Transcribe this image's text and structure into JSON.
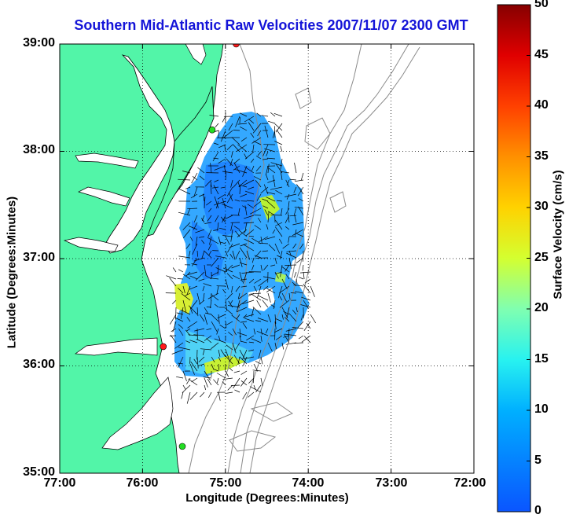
{
  "title": "Southern Mid-Atlantic Raw Velocities 2007/11/07 2300 GMT",
  "x_axis": {
    "label": "Longitude (Degrees:Minutes)",
    "ticks": [
      "77:00",
      "76:00",
      "75:00",
      "74:00",
      "73:00",
      "72:00"
    ]
  },
  "y_axis": {
    "label": "Latitude (Degrees:Minutes)",
    "ticks": [
      "39:00",
      "38:00",
      "37:00",
      "36:00",
      "35:00"
    ]
  },
  "colorbar": {
    "label": "Surface Velocity (cm/s)",
    "ticks": [
      "50",
      "45",
      "40",
      "35",
      "30",
      "25",
      "20",
      "15",
      "10",
      "5",
      "0"
    ],
    "range": [
      0,
      50
    ],
    "colormap": "jet"
  },
  "colors": {
    "title": "#1414d8",
    "land": "#52f5a8",
    "water_background": "#ffffff",
    "bathymetry": "#8a8a8a",
    "station_red": "#ff1a1a",
    "station_green": "#22dd22"
  },
  "map": {
    "extent": {
      "lon": [
        -77,
        -72
      ],
      "lat": [
        35,
        39
      ]
    },
    "grid": true,
    "stations": [
      {
        "lon": -74.87,
        "lat": 39.0,
        "color": "red"
      },
      {
        "lon": -75.16,
        "lat": 38.2,
        "color": "green"
      },
      {
        "lon": -75.75,
        "lat": 36.18,
        "color": "red"
      },
      {
        "lon": -75.52,
        "lat": 35.25,
        "color": "green"
      }
    ]
  }
}
